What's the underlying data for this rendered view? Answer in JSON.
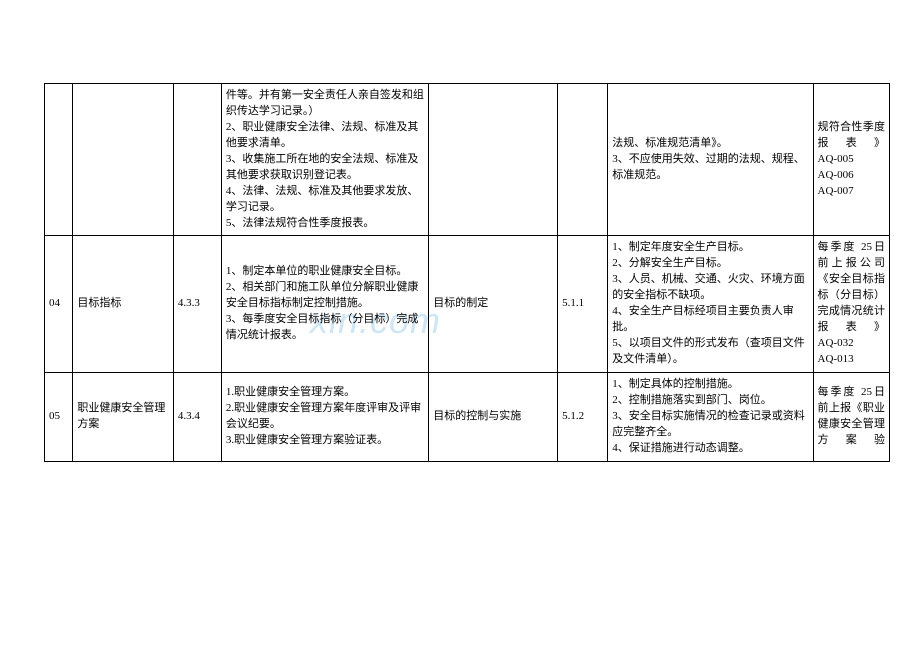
{
  "watermark": "xin.com",
  "table": {
    "rows": [
      {
        "col0": "",
        "col1": "",
        "col2": "",
        "col3": "件等。并有第一安全责任人亲自签发和组织传达学习记录。）\n2、职业健康安全法律、法规、标准及其他要求清单。\n3、收集施工所在地的安全法规、标准及其他要求获取识别登记表。\n4、法律、法规、标准及其他要求发放、学习记录。\n5、法律法规符合性季度报表。",
        "col4": "",
        "col5": "",
        "col6": "法规、标准规范清单》。\n3、不应使用失效、过期的法规、规程、标准规范。",
        "col7": "规符合性季度报表》\nAQ-005\nAQ-006\nAQ-007"
      },
      {
        "col0": "04",
        "col1": "目标指标",
        "col2": "4.3.3",
        "col3": "1、制定本单位的职业健康安全目标。\n2、相关部门和施工队单位分解职业健康安全目标指标制定控制措施。\n3、每季度安全目标指标（分目标）完成情况统计报表。",
        "col4": "目标的制定",
        "col5": "5.1.1",
        "col6": "1、制定年度安全生产目标。\n2、分解安全生产目标。\n3、人员、机械、交通、火灾、环境方面的安全指标不缺项。\n4、安全生产目标经项目主要负责人审批。\n5、以项目文件的形式发布（查项目文件及文件清单）。",
        "col7": "每季度 25日前上报公司《安全目标指标（分目标）完成情况统计报表》\nAQ-032\nAQ-013"
      },
      {
        "col0": "05",
        "col1": "职业健康安全管理方案",
        "col2": "4.3.4",
        "col3": "1.职业健康安全管理方案。\n2.职业健康安全管理方案年度评审及评审会议纪要。\n3.职业健康安全管理方案验证表。",
        "col4": "目标的控制与实施",
        "col5": "5.1.2",
        "col6": "1、制定具体的控制措施。\n2、控制措施落实到部门、岗位。\n3、安全目标实施情况的检查记录或资料应完整齐全。\n4、保证措施进行动态调整。",
        "col7": "每季度 25日前上报《职业健康安全管理方案验"
      }
    ]
  }
}
